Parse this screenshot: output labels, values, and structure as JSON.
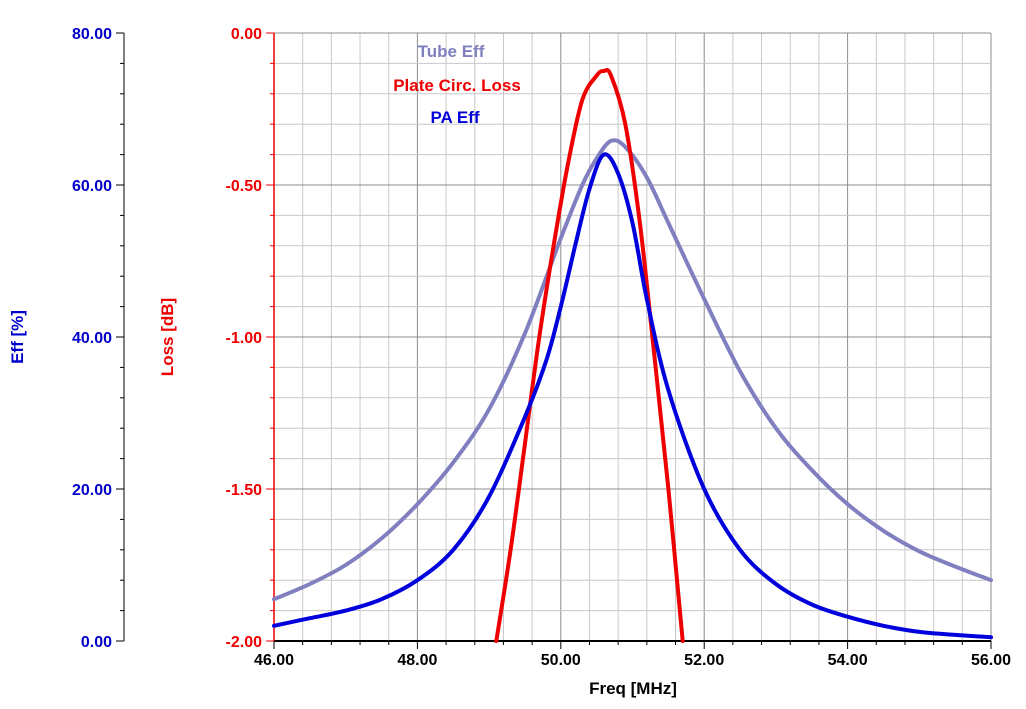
{
  "chart_data": {
    "type": "line",
    "title": "",
    "xlabel": "Freq [MHz]",
    "xlim": [
      46.0,
      56.0
    ],
    "x_ticks": [
      "46.00",
      "48.00",
      "50.00",
      "52.00",
      "54.00",
      "56.00"
    ],
    "grid": true,
    "legend_position": "top-center",
    "y_axes": [
      {
        "id": "eff",
        "label": "Eff [%]",
        "color": "#0000cc",
        "ylim": [
          0,
          80
        ],
        "ticks": [
          "0.00",
          "20.00",
          "40.00",
          "60.00",
          "80.00"
        ]
      },
      {
        "id": "loss",
        "label": "Loss [dB]",
        "color": "#ee0000",
        "ylim": [
          -2.0,
          0.0
        ],
        "ticks": [
          "-2.00",
          "-1.50",
          "-1.00",
          "-0.50",
          "0.00"
        ]
      }
    ],
    "series": [
      {
        "name": "Tube Eff",
        "axis": "eff",
        "color": "#8080c0",
        "x": [
          46.0,
          46.5,
          47.0,
          47.5,
          48.0,
          48.5,
          49.0,
          49.5,
          50.0,
          50.3,
          50.5,
          50.7,
          50.9,
          51.2,
          51.5,
          52.0,
          52.5,
          53.0,
          53.5,
          54.0,
          54.5,
          55.0,
          55.5,
          56.0
        ],
        "y": [
          5.5,
          7.5,
          10.0,
          13.5,
          18.0,
          23.5,
          30.5,
          40.5,
          53.0,
          60.0,
          63.5,
          65.8,
          65.0,
          61.0,
          55.0,
          45.0,
          35.5,
          28.0,
          22.5,
          18.0,
          14.5,
          11.8,
          9.8,
          8.0
        ]
      },
      {
        "name": "Plate Circ. Loss",
        "axis": "loss",
        "color": "#ee0000",
        "x": [
          49.1,
          49.3,
          49.5,
          49.7,
          49.9,
          50.1,
          50.3,
          50.5,
          50.6,
          50.7,
          50.9,
          51.1,
          51.3,
          51.5,
          51.7
        ],
        "y": [
          -2.0,
          -1.7,
          -1.35,
          -1.0,
          -0.7,
          -0.43,
          -0.22,
          -0.14,
          -0.125,
          -0.14,
          -0.3,
          -0.62,
          -1.05,
          -1.5,
          -2.0
        ]
      },
      {
        "name": "PA Eff",
        "axis": "eff",
        "color": "#0000dd",
        "x": [
          46.0,
          46.5,
          47.0,
          47.5,
          48.0,
          48.5,
          49.0,
          49.5,
          49.8,
          50.0,
          50.2,
          50.4,
          50.6,
          50.8,
          51.0,
          51.2,
          51.5,
          52.0,
          52.5,
          53.0,
          53.5,
          54.0,
          54.5,
          55.0,
          55.5,
          56.0
        ],
        "y": [
          2.0,
          3.0,
          4.0,
          5.5,
          8.0,
          12.0,
          19.0,
          29.5,
          37.0,
          44.0,
          52.0,
          59.5,
          64.0,
          61.5,
          55.0,
          45.0,
          33.0,
          20.0,
          12.0,
          7.5,
          4.8,
          3.2,
          2.0,
          1.2,
          0.8,
          0.5
        ]
      }
    ]
  }
}
